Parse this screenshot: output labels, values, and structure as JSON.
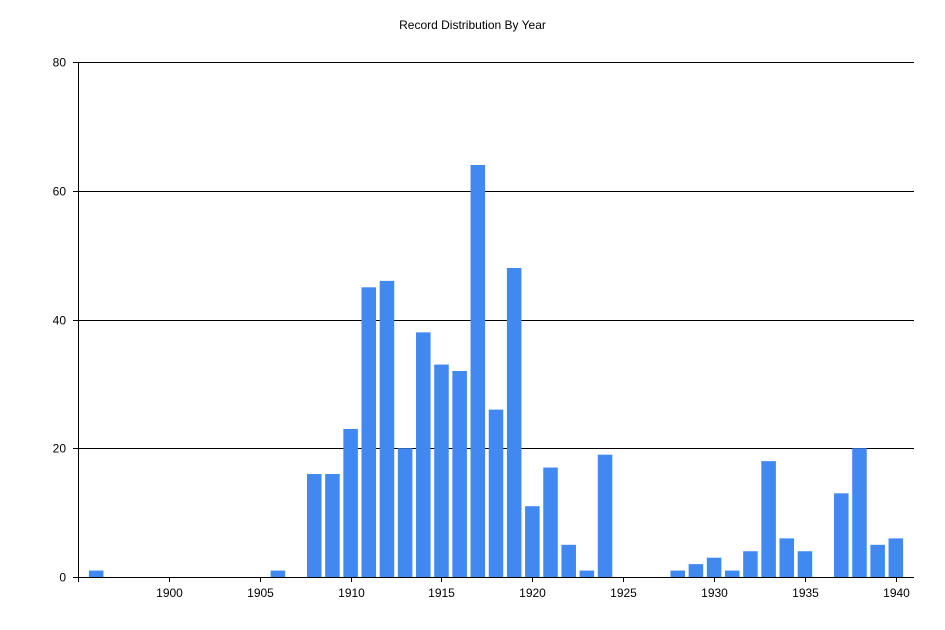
{
  "chart_data": {
    "type": "bar",
    "title": "Record Distribution By Year",
    "xlabel": "",
    "ylabel": "",
    "x": [
      1896,
      1906,
      1908,
      1909,
      1910,
      1911,
      1912,
      1913,
      1914,
      1915,
      1916,
      1917,
      1918,
      1919,
      1920,
      1921,
      1922,
      1923,
      1924,
      1928,
      1929,
      1930,
      1931,
      1932,
      1933,
      1934,
      1935,
      1937,
      1938,
      1939,
      1940
    ],
    "values": [
      1,
      1,
      16,
      16,
      23,
      45,
      46,
      20,
      38,
      33,
      32,
      64,
      26,
      48,
      11,
      17,
      5,
      1,
      19,
      1,
      2,
      3,
      1,
      4,
      18,
      6,
      4,
      13,
      20,
      5,
      6
    ],
    "xlim": [
      1895,
      1941
    ],
    "ylim": [
      0,
      80
    ],
    "x_ticks": [
      "1900",
      "1905",
      "1910",
      "1915",
      "1920",
      "1925",
      "1930",
      "1935",
      "1940"
    ],
    "y_ticks": [
      "0",
      "20",
      "40",
      "60",
      "80"
    ],
    "grid": "horizontal",
    "legend": "none",
    "bar_color": "#4189F0",
    "axis_color": "#000000"
  }
}
